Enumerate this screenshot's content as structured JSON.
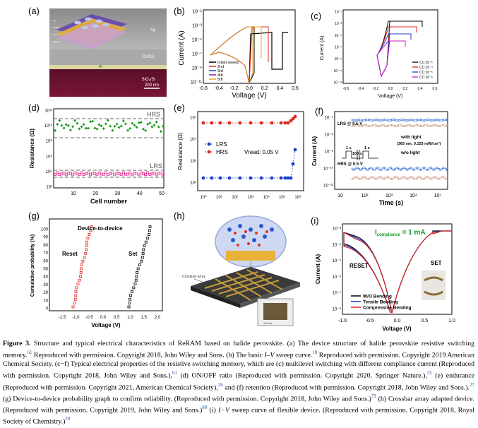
{
  "panels": {
    "a": {
      "label": "(a)",
      "layers": [
        "Ag",
        "CsPbI₃",
        "Pt",
        "SiO₂/Si"
      ],
      "scale": "200 nm",
      "stack_labels": [
        "Ag",
        "CsPbI₃",
        "Pt/Ti",
        "SiO₂/Si"
      ]
    },
    "b": {
      "label": "(b)",
      "legend": [
        "Initial sweep",
        "2nd",
        "3rd",
        "4th",
        "5th"
      ],
      "colors": [
        "#000000",
        "#e0281f",
        "#1f3fd1",
        "#7a1fb0",
        "#f2a11c"
      ]
    },
    "c": {
      "label": "(c)",
      "legend": [
        "CC:10⁻³",
        "CC:10⁻⁴",
        "CC:10⁻⁵",
        "CC:10⁻⁶"
      ],
      "colors": [
        "#000000",
        "#e0281f",
        "#1f3fd1",
        "#c21fc9"
      ]
    },
    "d": {
      "label": "(d)",
      "hrs": "HRS",
      "lrs": "LRS"
    },
    "e": {
      "label": "(e)",
      "legend": [
        "LRS",
        "HRS"
      ],
      "vread": "Vread: 0.05 V"
    },
    "f": {
      "label": "(f)",
      "lrs": "LRS\n@ 0.5 V",
      "hrs": "HRS\n@ 0.5 V",
      "with_light": "with light",
      "light_cond": "(365 nm, 0.153 mW/cm²)",
      "wo_light": "w/o light",
      "pulse1": "1 s",
      "pulse2": "100 s",
      "pulse3": "1 s"
    },
    "g": {
      "label": "(g)",
      "title": "Device-to-device",
      "reset": "Reset",
      "set": "Set"
    },
    "h": {
      "label": "(h)",
      "crossbar": "Crossbar array",
      "size": "1.5 cm"
    },
    "i": {
      "label": "(i)",
      "compliance": "I",
      "compliance_sub": "compliance",
      "compliance_val": " = 1 mA",
      "reset": "RESET",
      "set": "SET",
      "legend": [
        "W/O Bending",
        "Tensile Bending",
        "Compressive Bending"
      ],
      "colors": [
        "#000000",
        "#1f3fd1",
        "#e0281f"
      ]
    }
  },
  "chart_data": [
    {
      "panel": "b",
      "type": "line",
      "xlabel": "Voltage (V)",
      "ylabel": "Current (A)",
      "xlim": [
        -0.6,
        0.6
      ],
      "x_ticks": [
        "-0.6",
        "-0.4",
        "-0.2",
        "0.0",
        "0.2",
        "0.4",
        "0.6"
      ],
      "y_ticks": [
        "10⁻¹",
        "10⁻³",
        "10⁻⁵",
        "10⁻⁷",
        "10⁻⁹",
        "10⁻¹¹"
      ]
    },
    {
      "panel": "c",
      "type": "line",
      "xlabel": "Voltage (V)",
      "ylabel": "Current (A)",
      "x_ticks": [
        "-0.6",
        "-0.4",
        "-0.2",
        "0.0",
        "0.2",
        "0.4",
        "0.6"
      ],
      "y_ticks": [
        "10⁻¹",
        "10⁻³",
        "10⁻⁵",
        "10⁻⁷",
        "10⁻⁹",
        "10⁻¹¹",
        "10⁻¹³"
      ]
    },
    {
      "panel": "d",
      "type": "scatter",
      "xlabel": "Cell number",
      "ylabel": "Resistance (Ω)",
      "x_ticks": [
        "10",
        "20",
        "30",
        "40",
        "50"
      ],
      "y_ticks": [
        "10¹²",
        "10¹⁰",
        "10⁸",
        "10⁶",
        "10⁴",
        "10²"
      ]
    },
    {
      "panel": "e",
      "type": "scatter",
      "xlabel": "",
      "ylabel": "Resistance (Ω)",
      "x_ticks": [
        "10⁰",
        "10¹",
        "10²",
        "10³",
        "10⁴",
        "10⁵",
        "10⁶"
      ],
      "y_ticks": [
        "10⁷",
        "10⁵",
        "10³",
        "10¹"
      ]
    },
    {
      "panel": "f",
      "type": "scatter",
      "xlabel": "Time (s)",
      "ylabel": "Current (A)",
      "x_ticks": [
        "10",
        "10²",
        "10³",
        "10⁴",
        "10⁵"
      ],
      "y_ticks": [
        "10⁻⁴",
        "10⁻⁶",
        "10⁻⁸",
        "10⁻¹⁰",
        "10⁻¹²"
      ]
    },
    {
      "panel": "g",
      "type": "scatter",
      "xlabel": "Voltage (V)",
      "ylabel": "Cumulative probability (%)",
      "x_ticks": [
        "-1.5",
        "-1.0",
        "-0.5",
        "0.0",
        "0.5",
        "1.0",
        "1.5",
        "2.0"
      ],
      "y_ticks": [
        "100",
        "90",
        "80",
        "70",
        "60",
        "50",
        "40",
        "30",
        "20",
        "10",
        "0"
      ]
    },
    {
      "panel": "i",
      "type": "line",
      "xlabel": "Voltage (V)",
      "ylabel": "Current (A)",
      "x_ticks": [
        "-1.0",
        "-0.5",
        "0.0",
        "0.5",
        "1.0"
      ],
      "y_ticks": [
        "10⁻³",
        "10⁻⁴",
        "10⁻⁵",
        "10⁻⁶",
        "10⁻⁷",
        "10⁻⁸"
      ]
    }
  ],
  "caption": {
    "fig": "Figure 3.",
    "text": " Structure and typical electrical characteristics of ReRAM based on halide perovskite. (a) The device structure of halide perovskite resistive switching memory.",
    "r1": "61",
    "t1": " Reproduced with permission. Copyright 2018, John Wiley and Sons. (b) The basic ",
    "iv": "I–V",
    "t2": " sweep curve.",
    "r2": "18",
    "t3": " Reproduced with permission. Copyright 2019 American Chemical Society. (c−f) Typical electrical properties of the resistive switching memory, which are (c) multilevel switching with different compliance current (Reproduced with permission. Copyright 2018, John Wiley and Sons.),",
    "r3": "61",
    "t4": " (d) ON/OFF ratio (Reproduced with permission. Copyright 2020, Springer Nature.),",
    "r4": "25",
    "t5": " (e) endurance (Reproduced with permission. Copyright 2021, American Chemical Society),",
    "r5": "26",
    "t6": " and (f) retention (Reproduced with permission. Copyright 2018, John Wiley and Sons.).",
    "r6": "27",
    "t7": " (g) Device-to-device probability graph to confirm reliability. (Reproduced with permission. Copyright 2018, John Wiley and Sons.)",
    "r7": "79",
    "t8": " (h) Crossbar array adapted device. (Reproduced with permission. Copyright 2019, John Wiley and Sons.)",
    "r8": "80",
    "t9": " (i) ",
    "iv2": "I−V",
    "t10": " sweep curve of flexible device. (Reproduced with permission. Copyright 2018, Royal Society of Chemistry.)",
    "r9": "28"
  }
}
